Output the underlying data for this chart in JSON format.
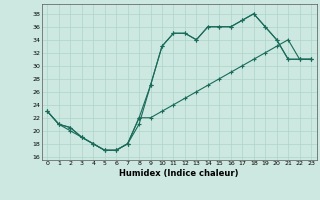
{
  "xlabel": "Humidex (Indice chaleur)",
  "bg_color": "#cce8e0",
  "line_color": "#1a6b5a",
  "xlim": [
    -0.5,
    23.5
  ],
  "ylim": [
    15.5,
    39.5
  ],
  "xticks": [
    0,
    1,
    2,
    3,
    4,
    5,
    6,
    7,
    8,
    9,
    10,
    11,
    12,
    13,
    14,
    15,
    16,
    17,
    18,
    19,
    20,
    21,
    22,
    23
  ],
  "yticks": [
    16,
    18,
    20,
    22,
    24,
    26,
    28,
    30,
    32,
    34,
    36,
    38
  ],
  "line1_x": [
    0,
    1,
    2,
    3,
    4,
    5,
    6,
    7,
    8,
    9,
    10,
    11,
    12,
    13,
    14,
    15,
    16,
    17,
    18,
    19,
    20,
    21,
    22,
    23
  ],
  "line1_y": [
    23,
    21,
    20,
    19,
    18,
    17,
    17,
    18,
    21,
    27,
    33,
    35,
    35,
    34,
    36,
    36,
    36,
    37,
    38,
    36,
    34,
    31,
    31,
    31
  ],
  "line2_x": [
    0,
    1,
    2,
    3,
    4,
    5,
    6,
    7,
    8,
    9,
    10,
    11,
    12,
    13,
    14,
    15,
    16,
    17,
    18,
    19,
    20,
    21,
    22,
    23
  ],
  "line2_y": [
    23,
    21,
    20.5,
    19,
    18,
    17,
    17,
    18,
    22,
    22,
    23,
    24,
    25,
    26,
    27,
    28,
    29,
    30,
    31,
    32,
    33,
    34,
    31,
    31
  ],
  "line3_x": [
    0,
    1,
    2,
    3,
    4,
    5,
    6,
    7,
    8,
    9,
    10,
    11,
    12,
    13,
    14,
    15,
    16,
    17,
    18,
    19,
    20,
    21,
    22,
    23
  ],
  "line3_y": [
    23,
    21,
    20.5,
    19,
    18,
    17,
    17,
    18,
    22,
    27,
    33,
    35,
    35,
    34,
    36,
    36,
    36,
    37,
    38,
    36,
    34,
    31,
    31,
    31
  ],
  "grid_color": "#aed4ca"
}
